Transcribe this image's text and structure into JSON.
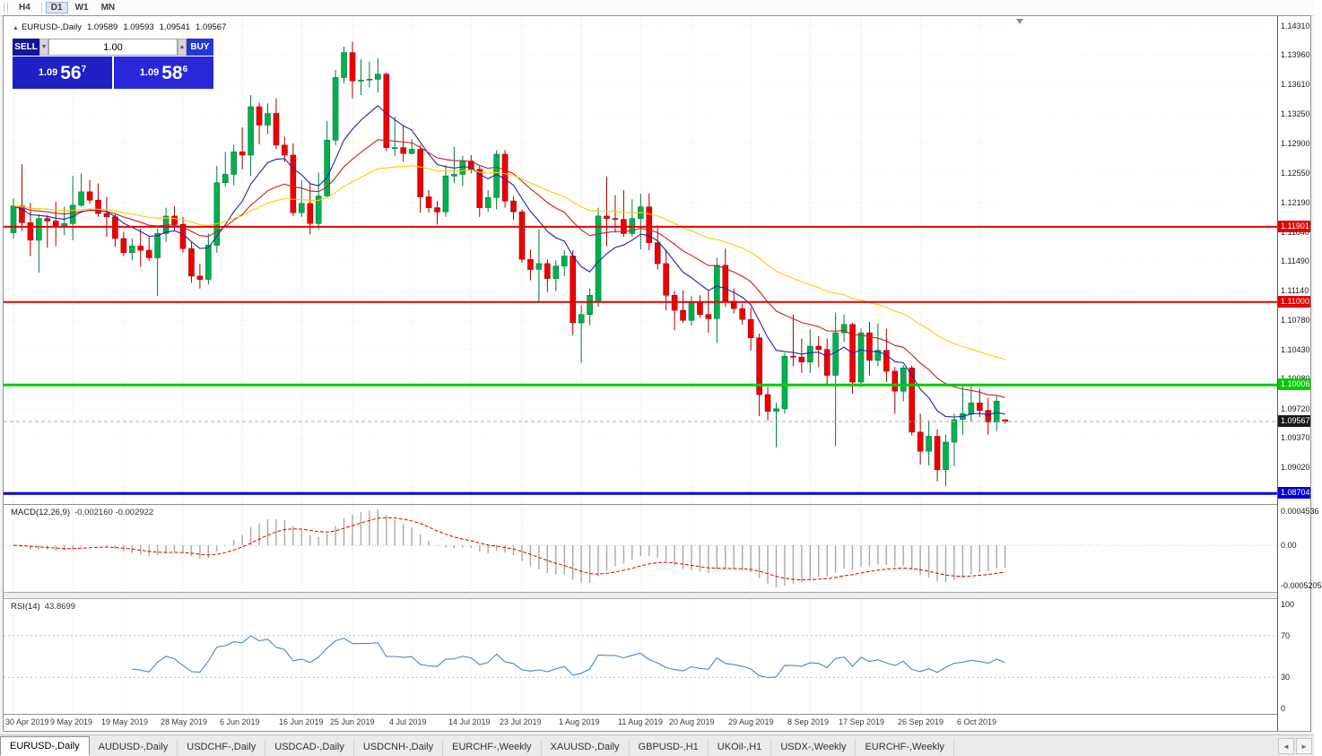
{
  "toolbar": {
    "timeframes": [
      "H4",
      "D1",
      "W1",
      "MN"
    ],
    "active_timeframe": "D1"
  },
  "chart": {
    "symbol_line": {
      "toggle_icon": "▲",
      "symbol": "EURUSD-,Daily",
      "open": "1.09589",
      "high": "1.09593",
      "low": "1.09541",
      "close": "1.09567"
    },
    "trade_widget": {
      "sell_label": "SELL",
      "buy_label": "BUY",
      "volume": "1.00",
      "spin_down_icon": "▼",
      "spin_up_icon": "▲",
      "sell_price_prefix": "1.09",
      "sell_price_big": "56",
      "sell_price_sup": "7",
      "buy_price_prefix": "1.09",
      "buy_price_big": "58",
      "buy_price_sup": "6"
    }
  },
  "chart_data": {
    "type": "candlestick",
    "symbol": "EURUSD-",
    "timeframe": "Daily",
    "colors": {
      "up": "#00b050",
      "up_edge": "#007a38",
      "down": "#ef0000",
      "down_edge": "#a40000"
    },
    "candles": [
      [
        1.1183,
        1.1224,
        1.1176,
        1.1215
      ],
      [
        1.1215,
        1.1265,
        1.1185,
        1.1195
      ],
      [
        1.1195,
        1.1219,
        1.1155,
        1.1174
      ],
      [
        1.1174,
        1.1205,
        1.1135,
        1.12
      ],
      [
        1.12,
        1.1204,
        1.1165,
        1.1197
      ],
      [
        1.1197,
        1.122,
        1.1167,
        1.1191
      ],
      [
        1.1191,
        1.1214,
        1.118,
        1.1194
      ],
      [
        1.1194,
        1.1251,
        1.1174,
        1.1216
      ],
      [
        1.1216,
        1.1254,
        1.1214,
        1.1232
      ],
      [
        1.1232,
        1.1246,
        1.1218,
        1.1222
      ],
      [
        1.1222,
        1.1242,
        1.1202,
        1.1206
      ],
      [
        1.1206,
        1.1226,
        1.1178,
        1.1202
      ],
      [
        1.1202,
        1.1205,
        1.1166,
        1.1176
      ],
      [
        1.1176,
        1.1184,
        1.1155,
        1.1159
      ],
      [
        1.1159,
        1.1176,
        1.115,
        1.1167
      ],
      [
        1.1167,
        1.1188,
        1.1142,
        1.1162
      ],
      [
        1.1162,
        1.1179,
        1.1149,
        1.1153
      ],
      [
        1.1153,
        1.1188,
        1.1107,
        1.1182
      ],
      [
        1.1182,
        1.1213,
        1.1172,
        1.1203
      ],
      [
        1.1203,
        1.1215,
        1.1186,
        1.1193
      ],
      [
        1.1193,
        1.1202,
        1.1159,
        1.1164
      ],
      [
        1.1164,
        1.1172,
        1.1123,
        1.1131
      ],
      [
        1.1131,
        1.1146,
        1.1116,
        1.1127
      ],
      [
        1.1127,
        1.1182,
        1.1121,
        1.1168
      ],
      [
        1.1168,
        1.1263,
        1.1159,
        1.1243
      ],
      [
        1.1243,
        1.128,
        1.1238,
        1.1253
      ],
      [
        1.1253,
        1.1288,
        1.124,
        1.128
      ],
      [
        1.128,
        1.1309,
        1.1259,
        1.1276
      ],
      [
        1.1276,
        1.1348,
        1.1251,
        1.1334
      ],
      [
        1.1334,
        1.1339,
        1.1289,
        1.1312
      ],
      [
        1.1312,
        1.1338,
        1.1301,
        1.1326
      ],
      [
        1.1326,
        1.1344,
        1.1283,
        1.1288
      ],
      [
        1.1288,
        1.1298,
        1.1268,
        1.1276
      ],
      [
        1.1276,
        1.129,
        1.1203,
        1.1207
      ],
      [
        1.1207,
        1.1246,
        1.1202,
        1.1218
      ],
      [
        1.1218,
        1.1243,
        1.1181,
        1.1194
      ],
      [
        1.1194,
        1.1255,
        1.1187,
        1.1227
      ],
      [
        1.1227,
        1.1317,
        1.1226,
        1.1294
      ],
      [
        1.1294,
        1.1378,
        1.1288,
        1.1369
      ],
      [
        1.1369,
        1.1406,
        1.1362,
        1.1399
      ],
      [
        1.1399,
        1.1412,
        1.1344,
        1.1365
      ],
      [
        1.1365,
        1.1391,
        1.1348,
        1.1366
      ],
      [
        1.1366,
        1.1388,
        1.1357,
        1.1367
      ],
      [
        1.1367,
        1.1392,
        1.1351,
        1.1373
      ],
      [
        1.1373,
        1.1375,
        1.1281,
        1.1285
      ],
      [
        1.1285,
        1.1322,
        1.1275,
        1.1285
      ],
      [
        1.1285,
        1.1312,
        1.1268,
        1.1278
      ],
      [
        1.1278,
        1.1295,
        1.1277,
        1.1283
      ],
      [
        1.1283,
        1.1288,
        1.1207,
        1.1226
      ],
      [
        1.1226,
        1.1234,
        1.1207,
        1.1213
      ],
      [
        1.1213,
        1.1221,
        1.1193,
        1.1208
      ],
      [
        1.1208,
        1.1264,
        1.1202,
        1.1251
      ],
      [
        1.1251,
        1.1286,
        1.1243,
        1.1253
      ],
      [
        1.1253,
        1.1275,
        1.1239,
        1.1269
      ],
      [
        1.1269,
        1.1276,
        1.1254,
        1.1259
      ],
      [
        1.1259,
        1.1263,
        1.1202,
        1.1213
      ],
      [
        1.1213,
        1.1234,
        1.1208,
        1.1225
      ],
      [
        1.1225,
        1.1282,
        1.1211,
        1.1277
      ],
      [
        1.1277,
        1.1282,
        1.1213,
        1.1221
      ],
      [
        1.1221,
        1.1227,
        1.1198,
        1.1208
      ],
      [
        1.1208,
        1.1211,
        1.1147,
        1.1151
      ],
      [
        1.1151,
        1.1163,
        1.1126,
        1.1139
      ],
      [
        1.1139,
        1.1187,
        1.1101,
        1.1146
      ],
      [
        1.1146,
        1.1151,
        1.1112,
        1.1128
      ],
      [
        1.1128,
        1.115,
        1.1113,
        1.1143
      ],
      [
        1.1143,
        1.1162,
        1.1131,
        1.1155
      ],
      [
        1.1155,
        1.1162,
        1.106,
        1.1075
      ],
      [
        1.1075,
        1.1096,
        1.1027,
        1.1085
      ],
      [
        1.1085,
        1.1116,
        1.1072,
        1.1108
      ],
      [
        1.11,
        1.1213,
        1.1094,
        1.1203
      ],
      [
        1.1203,
        1.125,
        1.1167,
        1.12
      ],
      [
        1.12,
        1.1228,
        1.1183,
        1.1199
      ],
      [
        1.1199,
        1.1234,
        1.1178,
        1.1182
      ],
      [
        1.1182,
        1.1223,
        1.1178,
        1.12
      ],
      [
        1.12,
        1.123,
        1.1163,
        1.1214
      ],
      [
        1.1214,
        1.123,
        1.1162,
        1.1171
      ],
      [
        1.1171,
        1.1192,
        1.1139,
        1.1146
      ],
      [
        1.1146,
        1.1163,
        1.109,
        1.1108
      ],
      [
        1.1108,
        1.1113,
        1.1066,
        1.109
      ],
      [
        1.109,
        1.1114,
        1.1075,
        1.1078
      ],
      [
        1.1078,
        1.1107,
        1.1072,
        1.11
      ],
      [
        1.11,
        1.1108,
        1.1081,
        1.1085
      ],
      [
        1.1085,
        1.1113,
        1.1063,
        1.108
      ],
      [
        1.108,
        1.1153,
        1.1051,
        1.1144
      ],
      [
        1.1144,
        1.1164,
        1.1094,
        1.1101
      ],
      [
        1.1101,
        1.1116,
        1.1086,
        1.1092
      ],
      [
        1.1092,
        1.1098,
        1.1073,
        1.1079
      ],
      [
        1.1079,
        1.1093,
        1.1042,
        1.1057
      ],
      [
        1.1057,
        1.1062,
        1.0963,
        1.0989
      ],
      [
        1.0989,
        1.0998,
        1.0958,
        1.0969
      ],
      [
        1.0969,
        1.0979,
        1.0926,
        1.0972
      ],
      [
        1.0972,
        1.1039,
        1.0966,
        1.1035
      ],
      [
        1.1035,
        1.1085,
        1.1023,
        1.1034
      ],
      [
        1.1034,
        1.1056,
        1.1015,
        1.1028
      ],
      [
        1.1028,
        1.1067,
        1.1015,
        1.1047
      ],
      [
        1.1047,
        1.1059,
        1.1022,
        1.1043
      ],
      [
        1.1043,
        1.1056,
        1.1,
        1.1012
      ],
      [
        1.1012,
        1.1087,
        1.0927,
        1.1063
      ],
      [
        1.1063,
        1.1085,
        1.1052,
        1.1073
      ],
      [
        1.1073,
        1.1075,
        1.099,
        1.1004
      ],
      [
        1.1004,
        1.1068,
        1.0998,
        1.1063
      ],
      [
        1.1063,
        1.1076,
        1.1012,
        1.103
      ],
      [
        1.103,
        1.1074,
        1.1023,
        1.1042
      ],
      [
        1.1042,
        1.1068,
        1.1004,
        1.1017
      ],
      [
        1.1017,
        1.1022,
        1.0966,
        1.0993
      ],
      [
        1.0993,
        1.1024,
        1.0981,
        1.1021
      ],
      [
        1.1021,
        1.1024,
        1.094,
        1.0944
      ],
      [
        1.0944,
        1.0966,
        1.0905,
        1.0921
      ],
      [
        1.0921,
        1.0958,
        1.0904,
        1.0939
      ],
      [
        1.0939,
        1.0947,
        1.0885,
        1.0899
      ],
      [
        1.0899,
        1.0941,
        1.0879,
        1.0932
      ],
      [
        1.0932,
        1.0966,
        1.0903,
        1.0959
      ],
      [
        1.0959,
        1.0999,
        1.0941,
        1.0966
      ],
      [
        1.0966,
        1.0999,
        1.0957,
        1.0979
      ],
      [
        1.0979,
        1.0996,
        1.0962,
        1.097
      ],
      [
        1.097,
        1.0985,
        1.0941,
        1.0956
      ],
      [
        1.0956,
        1.0987,
        1.0945,
        1.0981
      ],
      [
        1.09589,
        1.09593,
        1.09541,
        1.09567
      ]
    ],
    "x_labels": [
      [
        "30 Apr 2019",
        0
      ],
      [
        "9 May 2019",
        7
      ],
      [
        "19 May 2019",
        13
      ],
      [
        "28 May 2019",
        20
      ],
      [
        "6 Jun 2019",
        27
      ],
      [
        "16 Jun 2019",
        34
      ],
      [
        "25 Jun 2019",
        40
      ],
      [
        "4 Jul 2019",
        47
      ],
      [
        "14 Jul 2019",
        54
      ],
      [
        "23 Jul 2019",
        60
      ],
      [
        "1 Aug 2019",
        67
      ],
      [
        "11 Aug 2019",
        74
      ],
      [
        "20 Aug 2019",
        80
      ],
      [
        "29 Aug 2019",
        87
      ],
      [
        "8 Sep 2019",
        94
      ],
      [
        "17 Sep 2019",
        100
      ],
      [
        "26 Sep 2019",
        107
      ],
      [
        "6 Oct 2019",
        114
      ]
    ],
    "y_axis": {
      "labels": [
        "1.14310",
        "1.13960",
        "1.13610",
        "1.13250",
        "1.12900",
        "1.12550",
        "1.12190",
        "1.11840",
        "1.11490",
        "1.11140",
        "1.10780",
        "1.10430",
        "1.10080",
        "1.09720",
        "1.09370",
        "1.09020"
      ]
    },
    "hlines": [
      {
        "price": 1.11901,
        "label": "1.11901",
        "color": "#e60000",
        "lw": 2
      },
      {
        "price": 1.11,
        "label": "1.11000",
        "color": "#e60000",
        "lw": 2
      },
      {
        "price": 1.10006,
        "label": "1.10006",
        "color": "#00cc00",
        "lw": 3
      },
      {
        "price": 1.08704,
        "label": "1.08704",
        "color": "#0000e0",
        "lw": 3
      }
    ],
    "current_price": {
      "price": 1.09567,
      "label": "1.09567",
      "tag_color": "#1a1a1a"
    },
    "moving_averages": [
      {
        "period": 10,
        "color": "#2222aa"
      },
      {
        "period": 22,
        "color": "#c22222"
      },
      {
        "period": 45,
        "color": "#ffcc00"
      }
    ],
    "indicators": {
      "macd": {
        "label": "MACD(12,26,9)",
        "values_text": "-0.002160 -0.002922",
        "fast": 12,
        "slow": 26,
        "signal": 9,
        "axis_labels": [
          "0.0004536",
          "0.00",
          "-0.0005205"
        ],
        "hist_color": "#a9a9a9",
        "signal_color": "#e00000"
      },
      "rsi": {
        "label": "RSI(14)",
        "value_text": "43.8699",
        "period": 14,
        "levels": [
          100,
          70,
          30,
          0
        ],
        "level_lines": [
          70,
          30
        ],
        "line_color": "#4a86c8",
        "level_color": "#a4bfd4"
      }
    }
  },
  "tabs": {
    "items": [
      "EURUSD-,Daily",
      "AUDUSD-,Daily",
      "USDCHF-,Daily",
      "USDCAD-,Daily",
      "USDCNH-,Daily",
      "EURCHF-,Weekly",
      "XAUUSD-,Daily",
      "GBPUSD-,H1",
      "UKOil-,H1",
      "USDX-,Weekly",
      "EURCHF-,Weekly"
    ],
    "active_index": 0,
    "nav_left_icon": "◄",
    "nav_right_icon": "►"
  }
}
